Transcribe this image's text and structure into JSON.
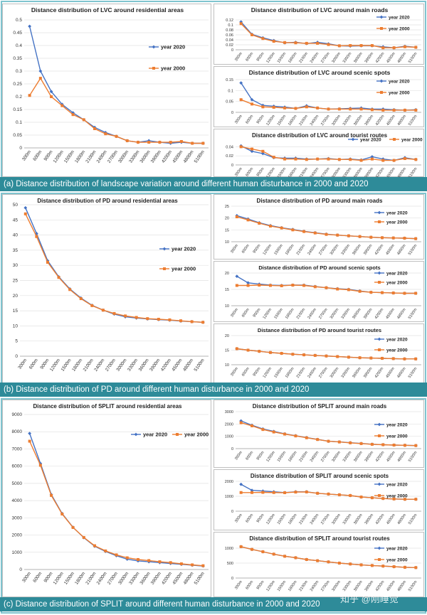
{
  "figure": {
    "captions": {
      "a": "(a) Distance distribution of landscape variation around different human disturbance in 2000 and 2020",
      "b": "(b) Distance distribution of PD around different human disturbance in 2000 and 2020",
      "c": "(c) Distance distribution of SPLIT around different human disturbance in 2000 and 2020"
    },
    "watermark": "知乎 @刚睡觉",
    "colors": {
      "year2020": "#4472c4",
      "year2000": "#ed7d31",
      "caption_bg": "#2e8b99"
    }
  },
  "chart_data": [
    {
      "id": "lvc-residential",
      "type": "line",
      "title": "Distance distribution of LVC around residential areas",
      "x": [
        "300m",
        "600m",
        "900m",
        "1200m",
        "1500m",
        "1800m",
        "2100m",
        "2400m",
        "2700m",
        "3000m",
        "3300m",
        "3600m",
        "3900m",
        "4200m",
        "4500m",
        "4800m",
        "5100m"
      ],
      "ylim": [
        0,
        0.5
      ],
      "yticks": [
        0,
        0.05,
        0.1,
        0.15,
        0.2,
        0.25,
        0.3,
        0.35,
        0.4,
        0.45,
        0.5
      ],
      "legend": "right",
      "series": [
        {
          "name": "year 2020",
          "values": [
            0.475,
            0.3,
            0.22,
            0.17,
            0.137,
            0.11,
            0.08,
            0.06,
            0.045,
            0.028,
            0.022,
            0.028,
            0.022,
            0.018,
            0.022,
            0.018,
            0.018
          ]
        },
        {
          "name": "year 2000",
          "values": [
            0.205,
            0.272,
            0.2,
            0.165,
            0.13,
            0.11,
            0.075,
            0.055,
            0.045,
            0.028,
            0.022,
            0.022,
            0.022,
            0.022,
            0.025,
            0.018,
            0.018
          ]
        }
      ]
    },
    {
      "id": "lvc-roads",
      "type": "line",
      "title": "Distance distribution of LVC around main roads",
      "x": [
        "300m",
        "600m",
        "900m",
        "1200m",
        "1500m",
        "1800m",
        "2100m",
        "2400m",
        "2700m",
        "3000m",
        "3300m",
        "3600m",
        "3900m",
        "4200m",
        "4500m",
        "4800m",
        "5100m"
      ],
      "ylim": [
        0,
        0.12
      ],
      "yticks": [
        0,
        0.02,
        0.04,
        0.06,
        0.08,
        0.1,
        0.12
      ],
      "legend": "top-right",
      "series": [
        {
          "name": "year 2020",
          "values": [
            0.112,
            0.062,
            0.048,
            0.037,
            0.028,
            0.03,
            0.025,
            0.03,
            0.024,
            0.016,
            0.015,
            0.016,
            0.016,
            0.012,
            0.008,
            0.014,
            0.01
          ]
        },
        {
          "name": "year 2000",
          "values": [
            0.105,
            0.06,
            0.045,
            0.034,
            0.029,
            0.028,
            0.026,
            0.026,
            0.021,
            0.016,
            0.017,
            0.017,
            0.017,
            0.008,
            0.008,
            0.012,
            0.01
          ]
        }
      ]
    },
    {
      "id": "lvc-scenic",
      "type": "line",
      "title": "Distance distribution of LVC around scenic  spots",
      "x": [
        "300m",
        "600m",
        "900m",
        "1200m",
        "1500m",
        "1800m",
        "2100m",
        "2400m",
        "2700m",
        "3000m",
        "3300m",
        "3600m",
        "3900m",
        "4200m",
        "4500m",
        "4800m",
        "5100m"
      ],
      "ylim": [
        0,
        0.15
      ],
      "yticks": [
        0,
        0.05,
        0.1,
        0.15
      ],
      "legend": "top-right",
      "series": [
        {
          "name": "year 2020",
          "values": [
            0.135,
            0.058,
            0.032,
            0.028,
            0.024,
            0.018,
            0.03,
            0.02,
            0.015,
            0.016,
            0.018,
            0.02,
            0.015,
            0.015,
            0.012,
            0.01,
            0.012
          ]
        },
        {
          "name": "year 2000",
          "values": [
            0.058,
            0.038,
            0.025,
            0.023,
            0.02,
            0.018,
            0.025,
            0.02,
            0.015,
            0.015,
            0.015,
            0.015,
            0.012,
            0.01,
            0.01,
            0.01,
            0.01
          ]
        }
      ]
    },
    {
      "id": "lvc-tourist",
      "type": "line",
      "title": "Distance distribution of LVC around tourist routes",
      "x": [
        "300m",
        "600m",
        "900m",
        "1200m",
        "1500m",
        "1800m",
        "2100m",
        "2400m",
        "2700m",
        "3000m",
        "3300m",
        "3600m",
        "3900m",
        "4200m",
        "4500m",
        "4800m",
        "5100m"
      ],
      "ylim": [
        0,
        0.05
      ],
      "yticks": [
        0,
        0.02,
        0.04
      ],
      "legend": "top-right",
      "series": [
        {
          "name": "year 2020",
          "values": [
            0.042,
            0.03,
            0.025,
            0.016,
            0.015,
            0.015,
            0.013,
            0.013,
            0.014,
            0.012,
            0.013,
            0.011,
            0.018,
            0.013,
            0.01,
            0.016,
            0.012
          ]
        },
        {
          "name": "year 2000",
          "values": [
            0.04,
            0.035,
            0.03,
            0.017,
            0.013,
            0.013,
            0.012,
            0.013,
            0.013,
            0.012,
            0.012,
            0.01,
            0.013,
            0.01,
            0.01,
            0.014,
            0.012
          ]
        }
      ]
    },
    {
      "id": "pd-residential",
      "type": "line",
      "title": "Distance distribution of PD around residential areas",
      "x": [
        "300m",
        "600m",
        "900m",
        "1200m",
        "1500m",
        "1800m",
        "2100m",
        "2400m",
        "2700m",
        "3000m",
        "3300m",
        "3600m",
        "3900m",
        "4200m",
        "4500m",
        "4800m",
        "5100m"
      ],
      "ylim": [
        0,
        50
      ],
      "yticks": [
        0,
        5,
        10,
        15,
        20,
        25,
        30,
        35,
        40,
        45,
        50
      ],
      "legend": "right",
      "series": [
        {
          "name": "year 2020",
          "values": [
            49,
            40.5,
            31.5,
            26.2,
            22.2,
            19.2,
            16.8,
            15.2,
            13.9,
            13.0,
            12.6,
            12.3,
            12.1,
            11.9,
            11.6,
            11.4,
            11.2
          ]
        },
        {
          "name": "year 2000",
          "values": [
            47,
            39.5,
            31,
            26,
            22,
            19,
            16.7,
            15.2,
            14.1,
            13.3,
            12.8,
            12.4,
            12.2,
            12.0,
            11.7,
            11.4,
            11.2
          ]
        }
      ]
    },
    {
      "id": "pd-roads",
      "type": "line",
      "title": "Distance distribution of PD around main roads",
      "x": [
        "300m",
        "600m",
        "900m",
        "1200m",
        "1500m",
        "1800m",
        "2100m",
        "2400m",
        "2700m",
        "3000m",
        "3300m",
        "3600m",
        "3900m",
        "4200m",
        "4500m",
        "4800m",
        "5100m"
      ],
      "ylim": [
        10,
        25
      ],
      "yticks": [
        10,
        15,
        20,
        25
      ],
      "legend": "top-right",
      "series": [
        {
          "name": "year 2020",
          "values": [
            21,
            19.6,
            18,
            16.8,
            15.9,
            15.2,
            14.4,
            13.8,
            13.2,
            12.8,
            12.5,
            12.2,
            11.9,
            11.7,
            11.6,
            11.5,
            11.3
          ]
        },
        {
          "name": "year 2000",
          "values": [
            20.5,
            19.2,
            17.8,
            16.6,
            15.8,
            15.0,
            14.3,
            13.7,
            13.1,
            12.8,
            12.5,
            12.2,
            11.9,
            11.7,
            11.6,
            11.5,
            11.3
          ]
        }
      ]
    },
    {
      "id": "pd-scenic",
      "type": "line",
      "title": "Distance distribution of PD around scenic spots",
      "x": [
        "300m",
        "600m",
        "900m",
        "1200m",
        "1500m",
        "1800m",
        "2100m",
        "2400m",
        "2700m",
        "3000m",
        "3300m",
        "3600m",
        "3900m",
        "4200m",
        "4500m",
        "4800m",
        "5100m"
      ],
      "ylim": [
        10,
        20
      ],
      "yticks": [
        10,
        15,
        20
      ],
      "legend": "top-right",
      "series": [
        {
          "name": "year 2020",
          "values": [
            19,
            17,
            16.6,
            16.3,
            16.2,
            16.3,
            16.3,
            15.9,
            15.5,
            15.2,
            15.0,
            14.5,
            14.1,
            14.0,
            13.9,
            13.8,
            13.8
          ]
        },
        {
          "name": "year 2000",
          "values": [
            16.2,
            16.2,
            16.3,
            16.2,
            16.1,
            16.3,
            16.2,
            15.8,
            15.5,
            15.1,
            14.9,
            14.4,
            14.1,
            14.0,
            13.9,
            13.8,
            13.8
          ]
        }
      ]
    },
    {
      "id": "pd-tourist",
      "type": "line",
      "title": "Distance distribution  of PD around tourist routes",
      "x": [
        "300m",
        "600m",
        "900m",
        "1200m",
        "1500m",
        "1800m",
        "2100m",
        "2400m",
        "2700m",
        "3000m",
        "3300m",
        "3600m",
        "3900m",
        "4200m",
        "4500m",
        "4800m",
        "5100m"
      ],
      "ylim": [
        10,
        20
      ],
      "yticks": [
        10,
        15,
        20
      ],
      "legend": "top-right",
      "series": [
        {
          "name": "year 2020",
          "values": [
            15.5,
            15.0,
            14.6,
            14.2,
            13.9,
            13.6,
            13.4,
            13.2,
            13.0,
            12.8,
            12.6,
            12.4,
            12.3,
            12.2,
            12.1,
            12.0,
            12.0
          ]
        },
        {
          "name": "year 2000",
          "values": [
            15.5,
            15.0,
            14.6,
            14.2,
            13.9,
            13.6,
            13.4,
            13.2,
            13.0,
            12.8,
            12.6,
            12.4,
            12.3,
            12.2,
            12.1,
            12.0,
            12.0
          ]
        }
      ]
    },
    {
      "id": "split-residential",
      "type": "line",
      "title": "Distance distribution of SPLIT around residential areas",
      "x": [
        "300m",
        "600m",
        "900m",
        "1200m",
        "1500m",
        "1800m",
        "2100m",
        "2400m",
        "2700m",
        "3000m",
        "3300m",
        "3600m",
        "3900m",
        "4200m",
        "4500m",
        "4800m",
        "5100m"
      ],
      "ylim": [
        0,
        9000
      ],
      "yticks": [
        0,
        1000,
        2000,
        3000,
        4000,
        5000,
        6000,
        7000,
        8000,
        9000
      ],
      "legend": "top-right",
      "series": [
        {
          "name": "year 2020",
          "values": [
            7900,
            6150,
            4350,
            3250,
            2450,
            1850,
            1350,
            1050,
            800,
            600,
            500,
            450,
            400,
            350,
            300,
            250,
            200
          ]
        },
        {
          "name": "year 2000",
          "values": [
            7450,
            6050,
            4300,
            3220,
            2440,
            1860,
            1380,
            1080,
            850,
            680,
            580,
            520,
            450,
            400,
            330,
            270,
            220
          ]
        }
      ]
    },
    {
      "id": "split-roads",
      "type": "line",
      "title": "Distance distribution of SPLIT around main roads",
      "x": [
        "300m",
        "600m",
        "900m",
        "1200m",
        "1500m",
        "1800m",
        "2100m",
        "2400m",
        "2700m",
        "3000m",
        "3300m",
        "3600m",
        "3900m",
        "4200m",
        "4500m",
        "4800m",
        "5100m"
      ],
      "ylim": [
        0,
        3000
      ],
      "yticks": [
        0,
        1000,
        2000,
        3000
      ],
      "legend": "top-right",
      "series": [
        {
          "name": "year 2020",
          "values": [
            2250,
            1900,
            1600,
            1400,
            1200,
            1050,
            900,
            750,
            600,
            550,
            480,
            420,
            360,
            320,
            290,
            270,
            250
          ]
        },
        {
          "name": "year 2000",
          "values": [
            2100,
            1850,
            1550,
            1350,
            1180,
            1030,
            880,
            740,
            600,
            540,
            470,
            410,
            350,
            320,
            290,
            270,
            250
          ]
        }
      ]
    },
    {
      "id": "split-scenic",
      "type": "line",
      "title": "Distance distribution of SPLIT around scenic spots",
      "x": [
        "300m",
        "600m",
        "900m",
        "1200m",
        "1500m",
        "1800m",
        "2100m",
        "2400m",
        "2700m",
        "3000m",
        "3300m",
        "3600m",
        "3900m",
        "4200m",
        "4500m",
        "4800m",
        "5100m"
      ],
      "ylim": [
        0,
        2000
      ],
      "yticks": [
        0,
        1000,
        2000
      ],
      "legend": "top-right",
      "series": [
        {
          "name": "year 2020",
          "values": [
            1800,
            1400,
            1350,
            1300,
            1250,
            1300,
            1300,
            1200,
            1150,
            1100,
            1050,
            950,
            900,
            850,
            820,
            800,
            800
          ]
        },
        {
          "name": "year 2000",
          "values": [
            1250,
            1250,
            1260,
            1250,
            1240,
            1280,
            1290,
            1200,
            1150,
            1100,
            1050,
            950,
            900,
            850,
            820,
            800,
            800
          ]
        }
      ]
    },
    {
      "id": "split-tourist",
      "type": "line",
      "title": "Distance distribution of SPLIT around tourist routes",
      "x": [
        "300m",
        "600m",
        "900m",
        "1200m",
        "1500m",
        "1800m",
        "2100m",
        "2400m",
        "2700m",
        "3000m",
        "3300m",
        "3600m",
        "3900m",
        "4200m",
        "4500m",
        "4800m",
        "5100m"
      ],
      "ylim": [
        0,
        1000
      ],
      "yticks": [
        0,
        500,
        1000
      ],
      "legend": "top-right",
      "series": [
        {
          "name": "year 2020",
          "values": [
            1050,
            960,
            880,
            800,
            730,
            680,
            620,
            580,
            540,
            500,
            470,
            440,
            420,
            400,
            380,
            360,
            350
          ]
        },
        {
          "name": "year 2000",
          "values": [
            1050,
            960,
            880,
            800,
            730,
            680,
            620,
            580,
            540,
            500,
            470,
            440,
            420,
            400,
            380,
            360,
            350
          ]
        }
      ]
    }
  ]
}
